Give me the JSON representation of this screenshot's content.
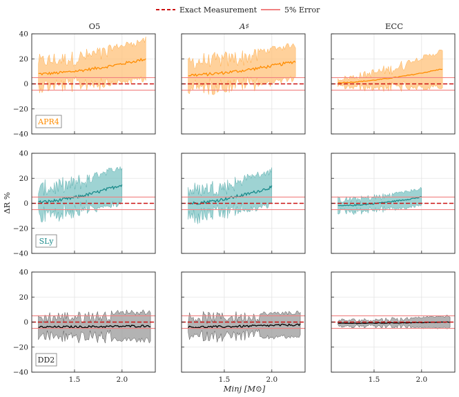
{
  "legend": {
    "exact_label": "Exact Measurement",
    "error_label": "5% Error",
    "exact_color": "#cc1111",
    "error_color": "#f08080"
  },
  "columns": [
    "O5",
    "A$^\\sharp$",
    "ECC"
  ],
  "column_titles": [
    "O5",
    "A♯",
    "ECC"
  ],
  "rows": [
    {
      "eos": "APR4",
      "color": "#ff8c00",
      "band": "#ffc27a"
    },
    {
      "eos": "SLy",
      "color": "#1a8a8a",
      "band": "#7ec4c4"
    },
    {
      "eos": "DD2",
      "color": "#000000",
      "band": "#9a9a9a"
    }
  ],
  "axes": {
    "ylabel": "ΔR %",
    "xlabel": "M_inj [M⊙]",
    "xlabel_display": "Minj [M⊙]",
    "xlim": [
      1.05,
      2.35
    ],
    "ylim": [
      -40,
      40
    ],
    "yticks": [
      -40,
      -20,
      0,
      20,
      40
    ],
    "yticklabels": [
      "−40",
      "−20",
      "0",
      "20",
      "40"
    ],
    "xticks": [
      1.5,
      2.0
    ],
    "xticklabels": [
      "1.5",
      "2.0"
    ],
    "exact_y": 0,
    "error_band": [
      -5,
      5
    ]
  },
  "chart_data": [
    {
      "type": "line",
      "row": "APR4",
      "col": "O5",
      "x_range": [
        1.12,
        2.25
      ],
      "median_start": 8,
      "median_end": 20,
      "spread_start": 13,
      "spread_end": 16
    },
    {
      "type": "line",
      "row": "APR4",
      "col": "A♯",
      "x_range": [
        1.12,
        2.25
      ],
      "median_start": 7,
      "median_end": 18,
      "spread_start": 14,
      "spread_end": 14
    },
    {
      "type": "line",
      "row": "APR4",
      "col": "ECC",
      "x_range": [
        1.12,
        2.22
      ],
      "median_start": 1,
      "median_end": 12,
      "spread_start": 4,
      "spread_end": 15
    },
    {
      "type": "line",
      "row": "SLy",
      "col": "O5",
      "x_range": [
        1.12,
        2.0
      ],
      "median_start": 1,
      "median_end": 15,
      "spread_start": 14,
      "spread_end": 15
    },
    {
      "type": "line",
      "row": "SLy",
      "col": "A♯",
      "x_range": [
        1.12,
        2.0
      ],
      "median_start": 0,
      "median_end": 13,
      "spread_start": 14,
      "spread_end": 14
    },
    {
      "type": "line",
      "row": "SLy",
      "col": "ECC",
      "x_range": [
        1.12,
        2.0
      ],
      "median_start": -2,
      "median_end": 5,
      "spread_start": 6,
      "spread_end": 7
    },
    {
      "type": "line",
      "row": "DD2",
      "col": "O5",
      "x_range": [
        1.12,
        2.3
      ],
      "median_start": -4,
      "median_end": -3,
      "spread_start": 10,
      "spread_end": 12
    },
    {
      "type": "line",
      "row": "DD2",
      "col": "A♯",
      "x_range": [
        1.12,
        2.3
      ],
      "median_start": -4,
      "median_end": -2,
      "spread_start": 10,
      "spread_end": 10
    },
    {
      "type": "line",
      "row": "DD2",
      "col": "ECC",
      "x_range": [
        1.12,
        2.3
      ],
      "median_start": -1,
      "median_end": 0,
      "spread_start": 3,
      "spread_end": 5
    }
  ]
}
